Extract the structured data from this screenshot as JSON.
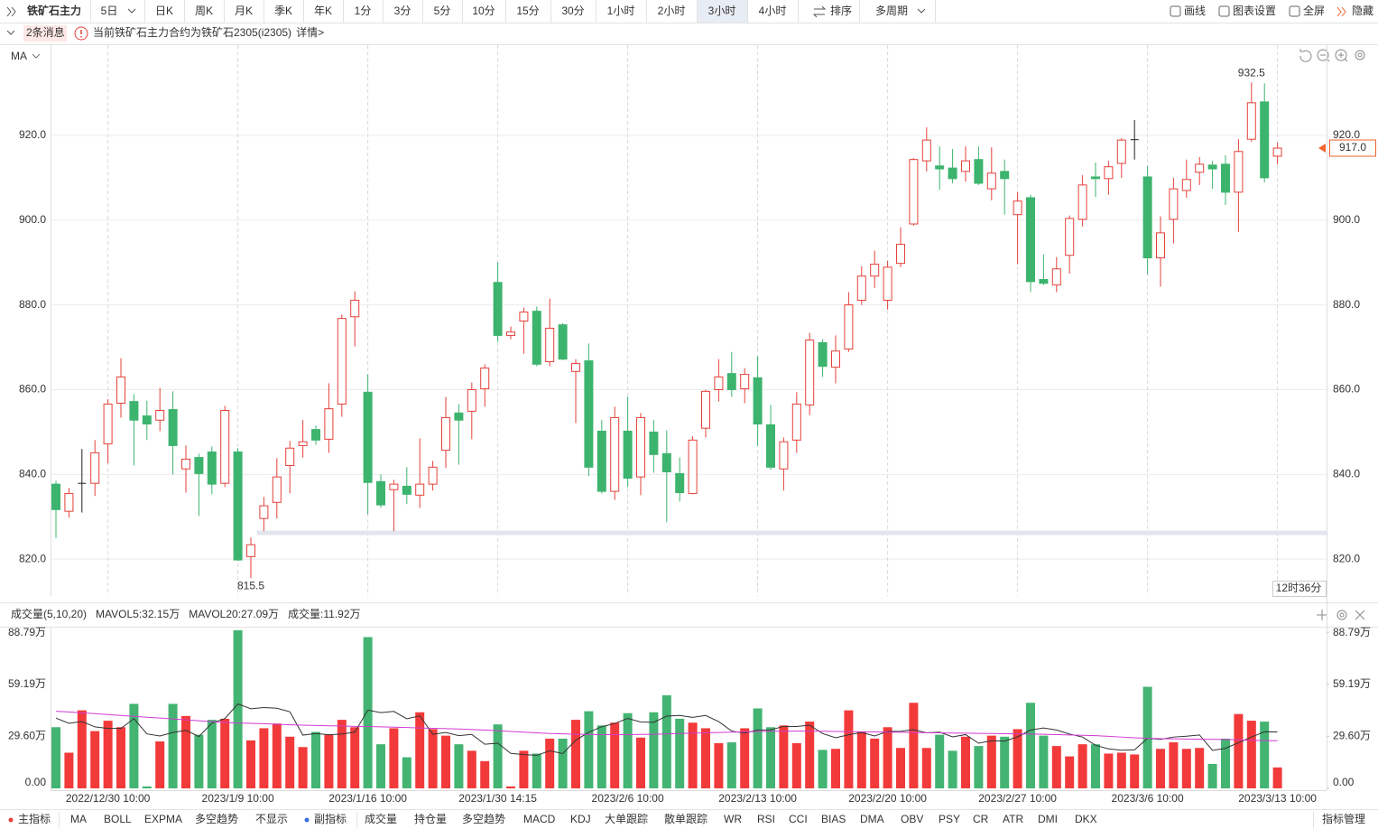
{
  "toolbar": {
    "symbol": "铁矿石主力",
    "periods": [
      "5日",
      "日K",
      "周K",
      "月K",
      "季K",
      "年K",
      "1分",
      "3分",
      "5分",
      "10分",
      "15分",
      "30分",
      "1小时",
      "2小时",
      "3小时",
      "4小时"
    ],
    "sort": "排序",
    "multi": "多周期",
    "tools": [
      "画线",
      "图表设置",
      "全屏",
      "隐藏"
    ]
  },
  "message": {
    "count": "2条消息",
    "text": "当前铁矿石主力合约为铁矿石2305(i2305)",
    "link": "详情>"
  },
  "time_box": "12时36分",
  "chart_data": [
    {
      "type": "candlestick",
      "indicator": "MA",
      "up_color": "#e5413a",
      "down_color": "#3cb46e",
      "grid": true,
      "ylim": [
        811.3,
        941.3
      ],
      "yticks": [
        {
          "value": 820,
          "label": "820.0"
        },
        {
          "value": 840,
          "label": "840.0"
        },
        {
          "value": 860,
          "label": "860.0"
        },
        {
          "value": 880,
          "label": "880.0"
        },
        {
          "value": 900,
          "label": "900.0"
        },
        {
          "value": 920,
          "label": "920.0"
        }
      ],
      "last_price": {
        "value": 917.0,
        "label": "917.0"
      },
      "high_label": "932.5",
      "low_label": "815.5",
      "level_line": 826.2,
      "open": [
        837.7,
        831.3,
        838,
        837.9,
        847.2,
        856.8,
        857.2,
        853.8,
        852.8,
        855.3,
        841.3,
        844,
        845.3,
        837.9,
        845.3,
        820.6,
        829.6,
        833.4,
        842.1,
        846.8,
        850.6,
        848.3,
        856.6,
        877.2,
        859.4,
        838.3,
        836.4,
        837.2,
        835.1,
        837.7,
        845.7,
        854.5,
        854.9,
        860.2,
        885.3,
        872.8,
        876.2,
        878.5,
        866.6,
        875.3,
        864.3,
        866.8,
        850.2,
        836,
        850.2,
        839.4,
        850,
        844.9,
        840.2,
        835.5,
        850.9,
        860,
        863.8,
        860.2,
        862.8,
        851.7,
        841.3,
        848.1,
        856.4,
        871.1,
        865.3,
        869.6,
        881.1,
        886.8,
        881.1,
        889.8,
        899.1,
        914,
        912.8,
        912.3,
        911.5,
        914.3,
        907.4,
        911.5,
        901.3,
        905.3,
        886,
        884.7,
        891.7,
        900.2,
        910.2,
        909.8,
        913.4,
        919.1,
        910.2,
        891.1,
        900.2,
        907,
        911.3,
        913,
        913.2,
        906.6,
        919.1,
        927.9,
        915.1
      ],
      "close": [
        831.7,
        835.5,
        838,
        845.1,
        856.6,
        863,
        852.8,
        851.9,
        855.1,
        846.8,
        843.6,
        840.2,
        837.7,
        855.1,
        819.8,
        823.4,
        832.6,
        839.4,
        846.2,
        847.7,
        848.1,
        855.5,
        876.8,
        881.1,
        838.1,
        832.8,
        837.7,
        835.3,
        837.7,
        841.7,
        853.4,
        852.8,
        860,
        865.1,
        872.8,
        873.6,
        878.3,
        866,
        874.5,
        867.2,
        866.2,
        841.7,
        836,
        853.4,
        839.1,
        853.4,
        844.7,
        840.6,
        835.7,
        848.1,
        859.6,
        863,
        860,
        863.6,
        851.9,
        841.7,
        847.7,
        856.6,
        871.7,
        865.5,
        869.1,
        880,
        886.8,
        889.6,
        888.9,
        894.3,
        914.3,
        918.9,
        912.1,
        909.8,
        914,
        908.7,
        911.1,
        909.8,
        904.5,
        885.5,
        885.1,
        888.5,
        900.4,
        908.3,
        909.8,
        912.6,
        918.9,
        919.1,
        891.1,
        897,
        907.4,
        909.6,
        913.2,
        912.1,
        906.6,
        916.2,
        927.7,
        910,
        917.0
      ],
      "high": [
        838.5,
        836.8,
        846,
        848.1,
        857.7,
        867.4,
        858.9,
        857.4,
        860.4,
        859.6,
        846.8,
        844.9,
        846.6,
        856.2,
        846.2,
        825.1,
        834.7,
        843.8,
        847.9,
        852.8,
        851.5,
        861.5,
        877.7,
        883.2,
        863.6,
        840,
        838.7,
        841.7,
        848.5,
        843.2,
        858.3,
        856.6,
        861.7,
        866,
        890,
        874.9,
        879.4,
        879.6,
        881.5,
        875.7,
        867.2,
        870.9,
        852.8,
        856,
        858.3,
        854.5,
        852.8,
        850.4,
        844,
        849,
        860,
        867.2,
        868.9,
        865.1,
        867.9,
        856.4,
        848.7,
        859.4,
        873.4,
        871.9,
        872.8,
        883,
        889.1,
        892.8,
        890.4,
        898.3,
        914.7,
        921.9,
        917.4,
        916.8,
        917.4,
        917.4,
        917.2,
        914.3,
        906.6,
        906,
        891.9,
        891.3,
        901.1,
        910.6,
        913.6,
        914,
        919.4,
        923.6,
        912.8,
        900.9,
        910,
        914.3,
        914.9,
        914,
        915.3,
        919.1,
        932.5,
        932.3,
        918.3
      ],
      "low": [
        825,
        829.8,
        831,
        834.9,
        842.6,
        853.4,
        842.1,
        848.1,
        850.2,
        840,
        835.7,
        830.2,
        835.3,
        837,
        819.6,
        815.5,
        826.6,
        829.6,
        835.5,
        844,
        847,
        845.1,
        853.6,
        870.2,
        830.6,
        832.1,
        826.6,
        833,
        832.1,
        836.2,
        841.5,
        842.3,
        848.3,
        856,
        871.3,
        871.9,
        868.5,
        865.5,
        865.5,
        867,
        852.1,
        839.6,
        835.5,
        834,
        837,
        835.1,
        840.4,
        828.7,
        833.6,
        835.3,
        848.7,
        857.2,
        858.3,
        856.8,
        846.8,
        841.1,
        836.2,
        845.1,
        854,
        863,
        861.5,
        868.9,
        880,
        884,
        878.9,
        888.9,
        898.7,
        911.5,
        907.2,
        908.7,
        909.1,
        908.3,
        904.7,
        901.3,
        889.6,
        883,
        884.7,
        883,
        887.4,
        898.5,
        905.5,
        906,
        910,
        914.3,
        887.2,
        884.3,
        894.5,
        905.3,
        908.3,
        907.4,
        903.6,
        897.2,
        918.5,
        908.9,
        913.2
      ]
    },
    {
      "type": "bar",
      "title": "成交量(5,10,20)",
      "current_label": "成交量:11.92万",
      "up_color": "#f23a3a",
      "down_color": "#43b472",
      "ylim": [
        0,
        92
      ],
      "yticks": [
        {
          "value": 0,
          "label": "0.00"
        },
        {
          "value": 29.6,
          "label": "29.60万"
        },
        {
          "value": 59.19,
          "label": "59.19万"
        },
        {
          "value": 88.79,
          "label": "88.79万"
        }
      ],
      "categories": [
        null,
        null,
        null,
        null,
        "2022/12/30 10:00",
        null,
        null,
        null,
        null,
        null,
        null,
        null,
        null,
        null,
        "2023/1/9 10:00",
        null,
        null,
        null,
        null,
        null,
        null,
        null,
        null,
        null,
        "2023/1/16 10:00",
        null,
        null,
        null,
        null,
        null,
        null,
        null,
        null,
        null,
        "2023/1/30 14:15",
        null,
        null,
        null,
        null,
        null,
        null,
        null,
        null,
        null,
        "2023/2/6 10:00",
        null,
        null,
        null,
        null,
        null,
        null,
        null,
        null,
        null,
        "2023/2/13 10:00",
        null,
        null,
        null,
        null,
        null,
        null,
        null,
        null,
        null,
        "2023/2/20 10:00",
        null,
        null,
        null,
        null,
        null,
        null,
        null,
        null,
        null,
        "2023/2/27 10:00",
        null,
        null,
        null,
        null,
        null,
        null,
        null,
        null,
        null,
        "2023/3/6 10:00",
        null,
        null,
        null,
        null,
        null,
        null,
        null,
        null,
        null,
        "2023/3/13 10:00"
      ],
      "values": [
        34.8,
        20.3,
        44.4,
        32.6,
        38.5,
        34.8,
        48.1,
        1.1,
        26.7,
        48.1,
        41.2,
        30.5,
        39,
        39.6,
        90,
        27.3,
        34.2,
        36.9,
        29.4,
        23.5,
        32.1,
        30.5,
        39,
        34.8,
        86.1,
        25.1,
        34.2,
        17.7,
        43.3,
        33.7,
        30,
        25.1,
        21.4,
        15.5,
        36.4,
        1.1,
        21.4,
        19.8,
        28.3,
        28.3,
        39,
        43.9,
        35.8,
        37.4,
        42.8,
        28.9,
        43.3,
        53,
        39.6,
        37.4,
        34.2,
        25.7,
        26.2,
        34.2,
        45.5,
        34.8,
        35.8,
        25.7,
        38,
        21.9,
        22.5,
        44.4,
        32.1,
        28.3,
        34.8,
        23,
        48.7,
        23,
        30.5,
        21.4,
        29.4,
        24.1,
        30,
        29.4,
        33.7,
        48.7,
        30,
        24.1,
        18.2,
        25.1,
        25.1,
        19.8,
        20.3,
        19.3,
        57.8,
        22.5,
        26.2,
        22.5,
        23,
        13.9,
        28.3,
        42.3,
        38.5,
        38,
        11.92
      ],
      "series": [
        {
          "name": "MAVOL5:32.15万",
          "color": "#333333",
          "values": [
            40,
            37,
            38,
            35,
            34.1,
            34.1,
            39.7,
            31.0,
            29.8,
            31.8,
            33.0,
            29.5,
            37.1,
            39.7,
            48.1,
            45.3,
            46.0,
            45.6,
            43.6,
            30.3,
            31.2,
            30.5,
            30.9,
            32.0,
            44.5,
            43.1,
            43.8,
            39.6,
            41.3,
            30.8,
            31.8,
            30.0,
            30.7,
            25.1,
            25.7,
            19.9,
            19.2,
            18.8,
            21.4,
            19.8,
            27.4,
            31.9,
            35.1,
            36.9,
            39.8,
            37.8,
            37.6,
            41.1,
            41.5,
            40.4,
            41.5,
            38.0,
            32.6,
            31.5,
            33.2,
            33.3,
            35.3,
            35.2,
            36.0,
            31.2,
            28.8,
            30.5,
            31.8,
            29.8,
            32.4,
            32.5,
            33.4,
            31.6,
            32.0,
            29.3,
            30.6,
            25.7,
            27.1,
            26.9,
            29.3,
            33.2,
            34.4,
            33.2,
            30.9,
            29.2,
            24.5,
            22.5,
            21.7,
            21.9,
            28.5,
            27.9,
            29.2,
            29.7,
            30.4,
            21.6,
            22.8,
            26.0,
            29.2,
            32.2,
            32.15
          ]
        },
        {
          "name": "MAVOL20:27.09万",
          "color": "#d23ad2",
          "values": [
            43.9,
            43.5,
            43,
            42.5,
            42,
            41.5,
            41,
            40.5,
            40,
            39.5,
            39,
            38.5,
            38,
            37.5,
            37.2,
            37,
            36.8,
            36.5,
            36.2,
            36,
            35.8,
            35.6,
            35.5,
            35.3,
            35.2,
            35,
            34.8,
            34.6,
            34.4,
            34.2,
            34,
            33.8,
            33.5,
            33.2,
            32.8,
            32.4,
            32,
            31.6,
            31.2,
            31,
            30.8,
            30.7,
            30.6,
            30.6,
            30.6,
            30.7,
            30.8,
            31,
            31.2,
            31.4,
            31.6,
            31.8,
            32,
            32.2,
            32.4,
            32.5,
            32.6,
            32.6,
            32.6,
            32.5,
            32.4,
            32.3,
            32.2,
            32.1,
            32,
            31.9,
            31.8,
            31.7,
            31.6,
            31.5,
            31.4,
            31.3,
            31.2,
            31.1,
            31,
            30.9,
            30.8,
            30.6,
            30.4,
            30.2,
            30,
            29.6,
            29.2,
            28.8,
            28.5,
            28.3,
            28.2,
            28.1,
            28,
            27.9,
            27.8,
            27.6,
            27.4,
            27.2,
            27.09
          ]
        }
      ]
    }
  ],
  "indicator_bar": {
    "main": "主指标",
    "main_items": [
      "MA",
      "BOLL",
      "EXPMA",
      "多空趋势",
      "不显示"
    ],
    "sub": "副指标",
    "sub_items": [
      "成交量",
      "持仓量",
      "多空趋势",
      "MACD",
      "KDJ",
      "大单跟踪",
      "散单跟踪",
      "WR",
      "RSI",
      "CCI",
      "BIAS",
      "DMA",
      "OBV",
      "PSY",
      "CR",
      "ATR",
      "DMI",
      "DKX"
    ],
    "manage": "指标管理"
  }
}
